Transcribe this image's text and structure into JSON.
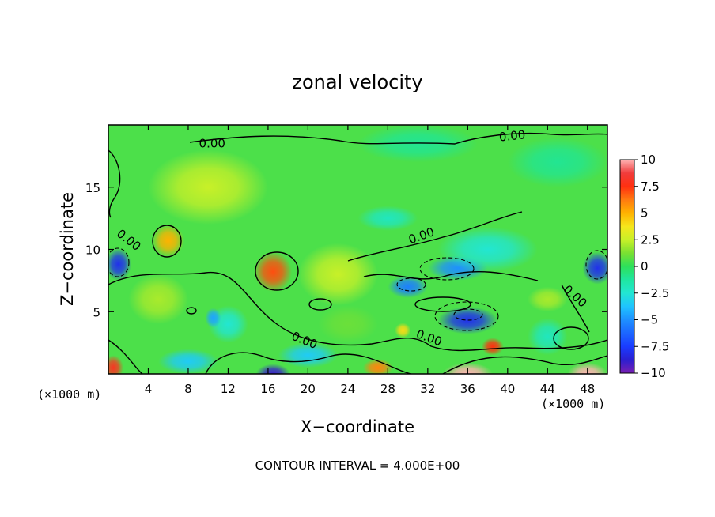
{
  "chart_data": {
    "type": "heatmap",
    "title": "zonal velocity",
    "xlabel": "X−coordinate",
    "ylabel": "Z−coordinate",
    "x_unit_note": "(×1000 m)",
    "z_unit_note": "(×1000 m)",
    "xlim": [
      0,
      50
    ],
    "ylim": [
      0,
      20
    ],
    "x_ticks": [
      4,
      8,
      12,
      16,
      20,
      24,
      28,
      32,
      36,
      40,
      44,
      48
    ],
    "y_ticks": [
      5,
      10,
      15
    ],
    "color_range": [
      -10,
      10
    ],
    "colorbar_labels": [
      "10",
      "7.5",
      "5",
      "2.5",
      "0",
      "−2.5",
      "−5",
      "−7.5",
      "−10"
    ],
    "colorbar_stops": [
      {
        "value": -10,
        "color": "#7a1fb2"
      },
      {
        "value": -8.75,
        "color": "#2a1fd0"
      },
      {
        "value": -7.5,
        "color": "#1a3cff"
      },
      {
        "value": -5,
        "color": "#1e90ff"
      },
      {
        "value": -3.75,
        "color": "#1fc4ff"
      },
      {
        "value": -2.5,
        "color": "#22e6d2"
      },
      {
        "value": -1.25,
        "color": "#1fe6a0"
      },
      {
        "value": 0,
        "color": "#2ee05a"
      },
      {
        "value": 1.25,
        "color": "#7ae032"
      },
      {
        "value": 2.5,
        "color": "#c8f028"
      },
      {
        "value": 3.75,
        "color": "#f6e61c"
      },
      {
        "value": 5,
        "color": "#ffb200"
      },
      {
        "value": 6.25,
        "color": "#ff7a10"
      },
      {
        "value": 7.5,
        "color": "#ff3010"
      },
      {
        "value": 8.75,
        "color": "#f03c3c"
      },
      {
        "value": 10,
        "color": "#ffb4b4"
      }
    ],
    "background_value": 0.5,
    "features": [
      {
        "x": 1,
        "z": 8.8,
        "value": -8,
        "sx": 1.3,
        "sz": 1.3
      },
      {
        "x": 6,
        "z": 10.7,
        "value": 5,
        "sx": 1.6,
        "sz": 1.3
      },
      {
        "x": 16.5,
        "z": 8.2,
        "value": 7,
        "sx": 1.9,
        "sz": 1.6
      },
      {
        "x": 10,
        "z": 15,
        "value": 2.5,
        "sx": 6,
        "sz": 3
      },
      {
        "x": 23,
        "z": 8,
        "value": 2.5,
        "sx": 4,
        "sz": 2.5
      },
      {
        "x": 5,
        "z": 6,
        "value": 2,
        "sx": 3,
        "sz": 2
      },
      {
        "x": 12,
        "z": 4,
        "value": -2.5,
        "sx": 2,
        "sz": 1.5
      },
      {
        "x": 10.5,
        "z": 4.5,
        "value": -4.5,
        "sx": 0.8,
        "sz": 0.8
      },
      {
        "x": 36,
        "z": 4.3,
        "value": -8,
        "sx": 3,
        "sz": 1.1
      },
      {
        "x": 35,
        "z": 8.5,
        "value": -5,
        "sx": 3,
        "sz": 1
      },
      {
        "x": 30,
        "z": 7,
        "value": -5.5,
        "sx": 2,
        "sz": 0.9
      },
      {
        "x": 49,
        "z": 8.5,
        "value": -8,
        "sx": 1.5,
        "sz": 1.3
      },
      {
        "x": 38,
        "z": 10,
        "value": -2.5,
        "sx": 5,
        "sz": 1.8
      },
      {
        "x": 24,
        "z": 4,
        "value": 1,
        "sx": 3,
        "sz": 1.5
      },
      {
        "x": 16.5,
        "z": 0,
        "value": -9,
        "sx": 1.7,
        "sz": 0.8
      },
      {
        "x": 8,
        "z": 1,
        "value": -3.5,
        "sx": 3,
        "sz": 1
      },
      {
        "x": 20,
        "z": 1.5,
        "value": -3.5,
        "sx": 3,
        "sz": 1
      },
      {
        "x": 36,
        "z": 0,
        "value": 10,
        "sx": 2.5,
        "sz": 0.9
      },
      {
        "x": 48,
        "z": 0,
        "value": 10,
        "sx": 2,
        "sz": 0.9
      },
      {
        "x": 38.5,
        "z": 2.2,
        "value": 7.5,
        "sx": 1.1,
        "sz": 0.7
      },
      {
        "x": 0.5,
        "z": 0.5,
        "value": 8,
        "sx": 1,
        "sz": 1
      },
      {
        "x": 27,
        "z": 0.5,
        "value": 6,
        "sx": 1.5,
        "sz": 0.7
      },
      {
        "x": 31,
        "z": 18.5,
        "value": -1,
        "sx": 6,
        "sz": 1.5
      },
      {
        "x": 45,
        "z": 17,
        "value": -1,
        "sx": 5,
        "sz": 2
      },
      {
        "x": 44,
        "z": 3,
        "value": -2,
        "sx": 2,
        "sz": 1.5
      },
      {
        "x": 44,
        "z": 6,
        "value": 2,
        "sx": 2,
        "sz": 1
      },
      {
        "x": 29.5,
        "z": 3.5,
        "value": 4,
        "sx": 0.8,
        "sz": 0.6
      },
      {
        "x": 28,
        "z": 12.5,
        "value": -2,
        "sx": 3,
        "sz": 1
      }
    ],
    "contour_labels": [
      {
        "text": "0.00",
        "x": 10.4,
        "z": 18.2,
        "rotate": 0
      },
      {
        "text": "0.00",
        "x": 40.5,
        "z": 18.8,
        "rotate": -6
      },
      {
        "text": "0.00",
        "x": 1.8,
        "z": 10.5,
        "rotate": 38
      },
      {
        "text": "0.00",
        "x": 31.5,
        "z": 10.8,
        "rotate": -20
      },
      {
        "text": "0.00",
        "x": 19.5,
        "z": 2.4,
        "rotate": 22
      },
      {
        "text": "0.00",
        "x": 32,
        "z": 2.6,
        "rotate": 20
      },
      {
        "text": "0.00",
        "x": 46.5,
        "z": 6,
        "rotate": 42
      }
    ],
    "grid": false,
    "legend": "right",
    "note": "CONTOUR INTERVAL = 4.000E+00"
  }
}
